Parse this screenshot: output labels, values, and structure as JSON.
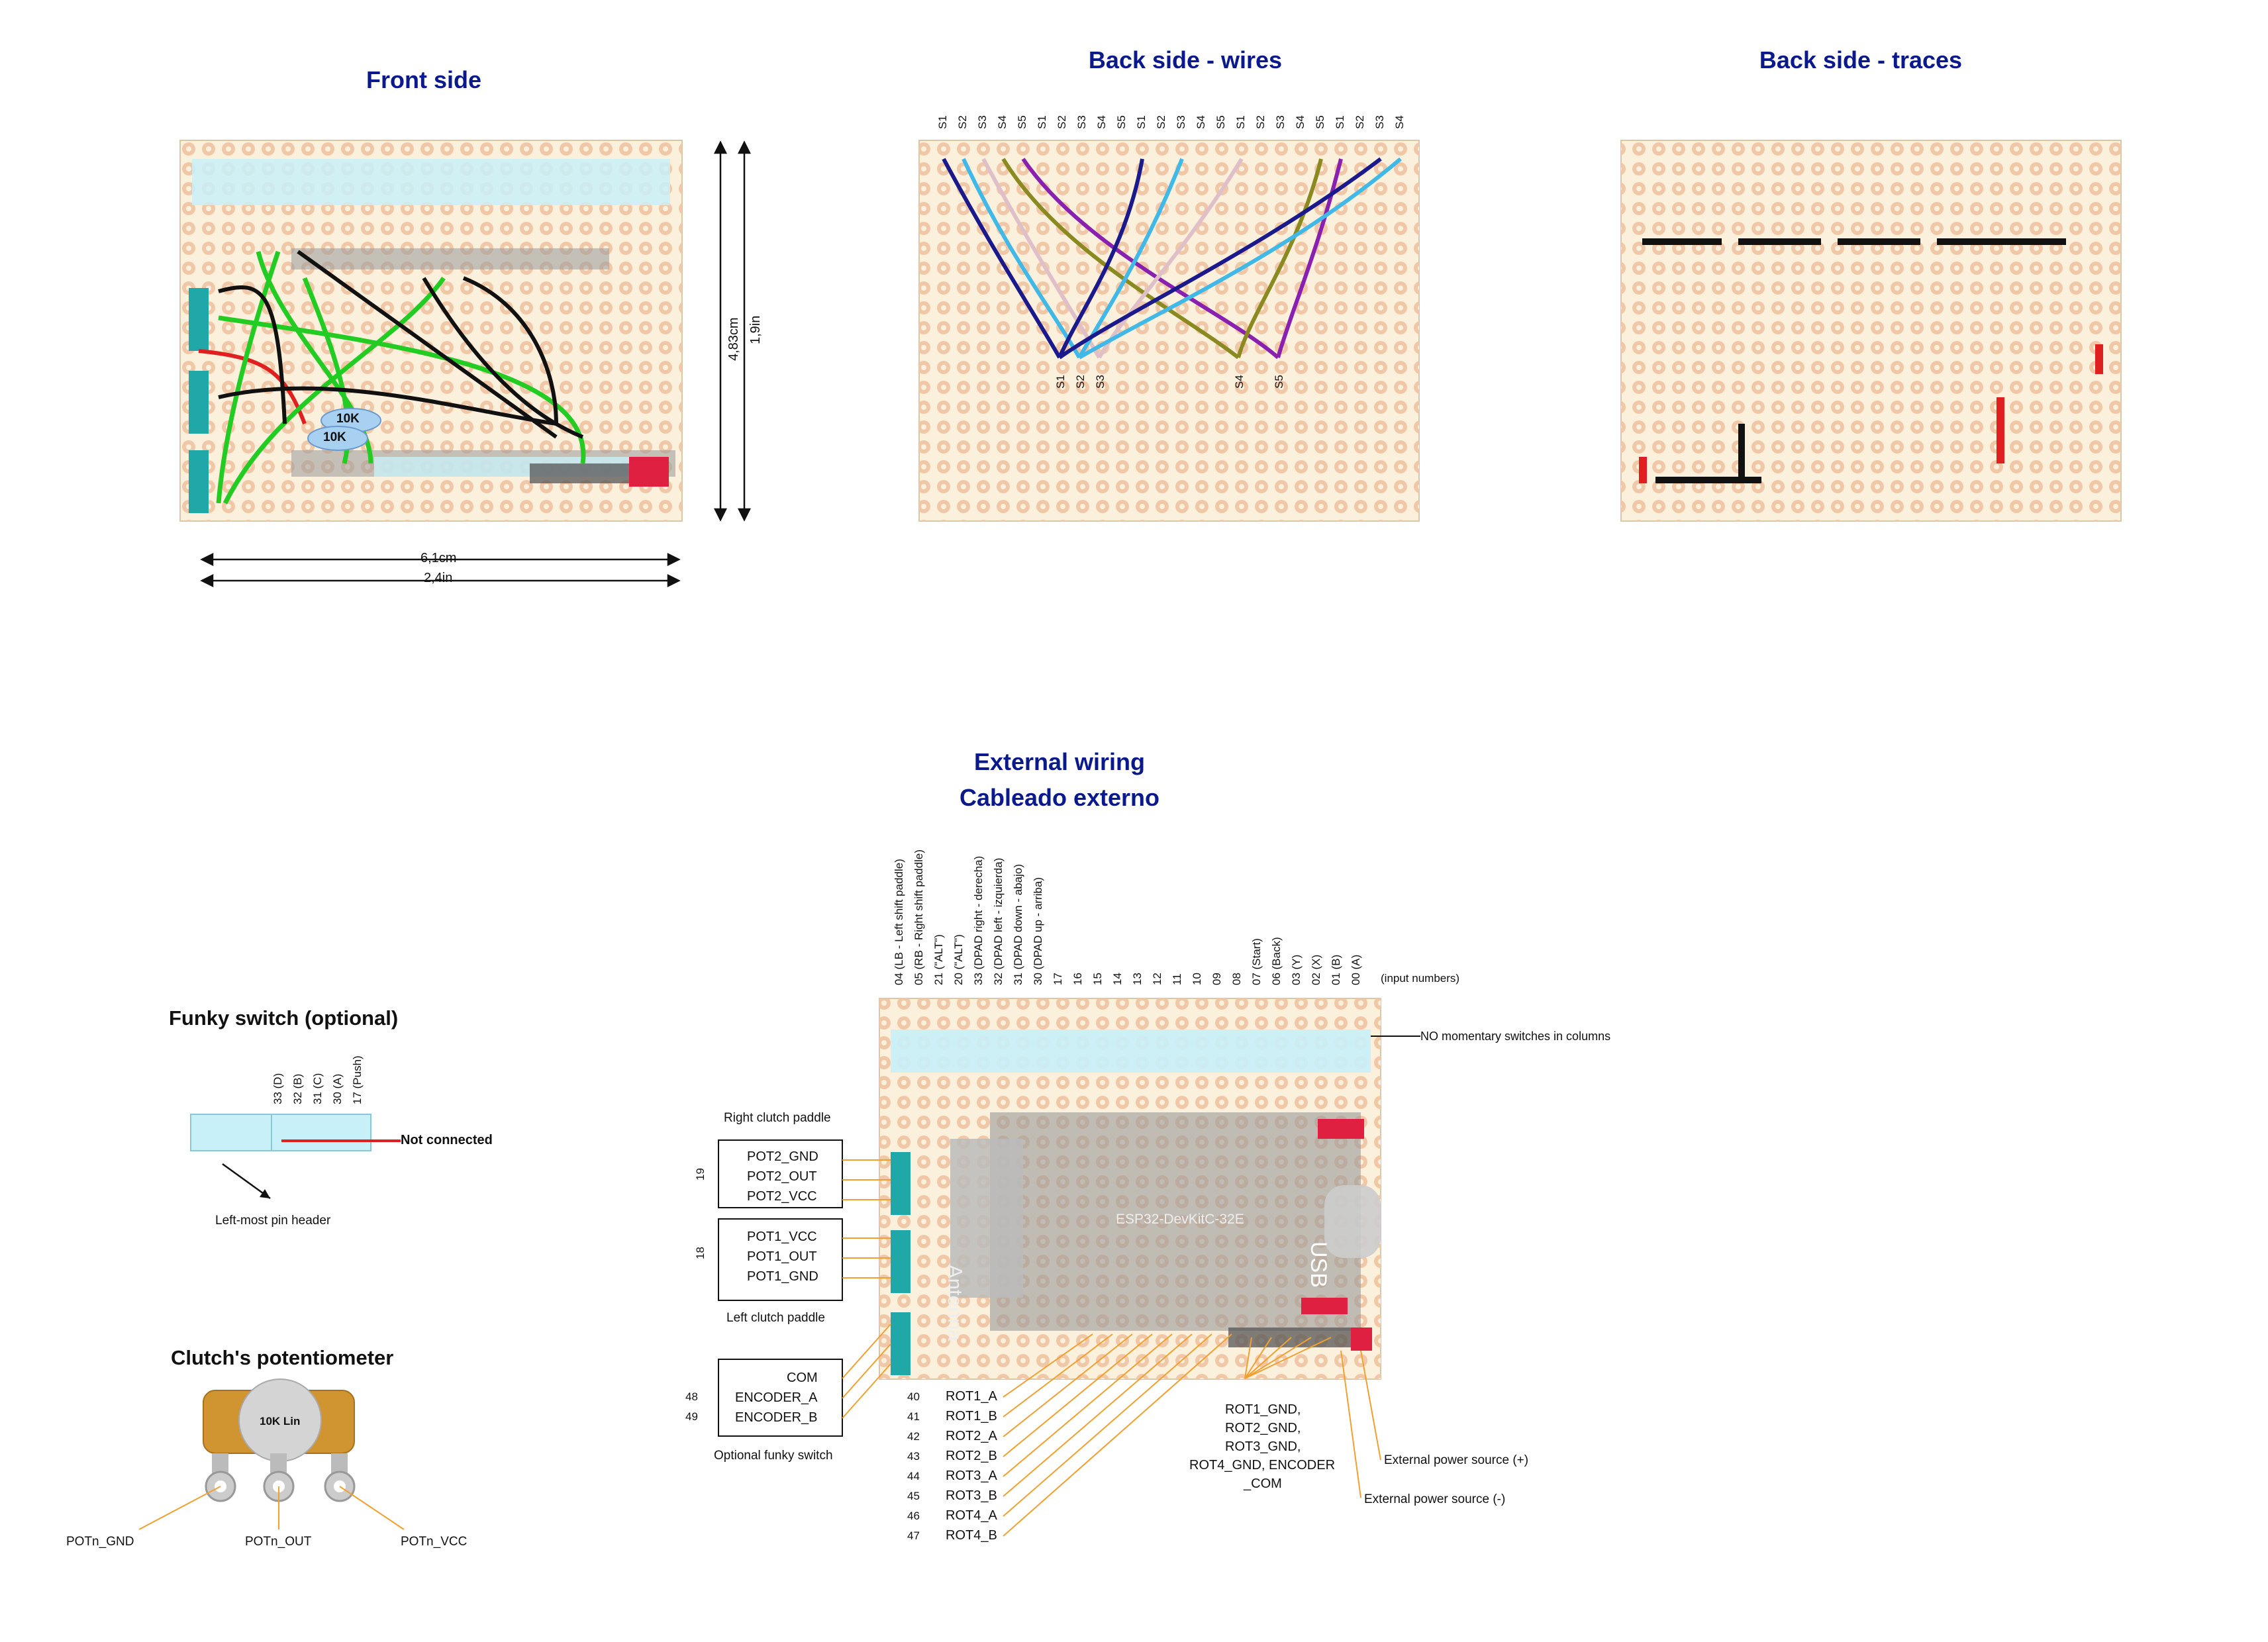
{
  "titles": {
    "front": "Front side",
    "back_wires": "Back side - wires",
    "back_traces": "Back side - traces",
    "external_1": "External wiring",
    "external_2": "Cableado externo",
    "funky": "Funky switch (optional)",
    "clutch": "Clutch's potentiometer"
  },
  "dimensions": {
    "width_cm": "6,1cm",
    "width_in": "2,4in",
    "height_cm": "4,83cm",
    "height_in": "1,9in"
  },
  "front_resistors": [
    "10K",
    "10K"
  ],
  "wire_labels_top": [
    "S1",
    "S2",
    "S3",
    "S4",
    "S5",
    "S1",
    "S2",
    "S3",
    "S4",
    "S5",
    "S1",
    "S2",
    "S3",
    "S4",
    "S5",
    "S1",
    "S2",
    "S3",
    "S4",
    "S5",
    "S1",
    "S2",
    "S3",
    "S4"
  ],
  "wire_labels_bottom": [
    "S1",
    "S2",
    "S3",
    "S4",
    "S5"
  ],
  "input_numbers": [
    "04 (LB - Left shift paddle)",
    "05 (RB - Right shift paddle)",
    "21 (\"ALT\")",
    "20 (\"ALT\")",
    "33 (DPAD right - derecha)",
    "32 (DPAD left - izquierda)",
    "31 (DPAD down - abajo)",
    "30 (DPAD up - arriba)",
    "17",
    "16",
    "15",
    "14",
    "13",
    "12",
    "11",
    "10",
    "09",
    "08",
    "07 (Start)",
    "06 (Back)",
    "03 (Y)",
    "02 (X)",
    "01 (B)",
    "00 (A)"
  ],
  "input_numbers_caption": "(input numbers)",
  "no_switches_label": "NO momentary switches in columns",
  "esp32": {
    "name": "ESP32-DevKitC-32E",
    "antenna": "Antenna",
    "usb": "USB"
  },
  "right_clutch": {
    "caption": "Right clutch paddle",
    "number": "19",
    "lines": [
      "POT2_GND",
      "POT2_OUT",
      "POT2_VCC"
    ]
  },
  "left_clutch": {
    "caption": "Left clutch paddle",
    "number": "18",
    "lines": [
      "POT1_VCC",
      "POT1_OUT",
      "POT1_GND"
    ]
  },
  "funky_box": {
    "caption": "Optional funky switch",
    "lines": [
      "COM",
      "ENCODER_A",
      "ENCODER_B"
    ],
    "numbers": [
      "48",
      "49"
    ]
  },
  "rotary": [
    {
      "num": "40",
      "name": "ROT1_A"
    },
    {
      "num": "41",
      "name": "ROT1_B"
    },
    {
      "num": "42",
      "name": "ROT2_A"
    },
    {
      "num": "43",
      "name": "ROT2_B"
    },
    {
      "num": "44",
      "name": "ROT3_A"
    },
    {
      "num": "45",
      "name": "ROT3_B"
    },
    {
      "num": "46",
      "name": "ROT4_A"
    },
    {
      "num": "47",
      "name": "ROT4_B"
    }
  ],
  "gnd_group": [
    "ROT1_GND,",
    "ROT2_GND,",
    "ROT3_GND,",
    "ROT4_GND, ENCODER",
    "_COM"
  ],
  "power": {
    "plus": "External power source (+)",
    "minus": "External power source (-)"
  },
  "funky_pins": [
    "33 (D)",
    "32 (B)",
    "31 (C)",
    "30 (A)",
    "17 (Push)"
  ],
  "funky_not_connected": "Not connected",
  "funky_leftmost": "Left-most pin header",
  "pot": {
    "value": "10K Lin",
    "gnd": "POTn_GND",
    "out": "POTn_OUT",
    "vcc": "POTn_VCC"
  },
  "colors": {
    "title": "#0a1a8c",
    "board": "#fbf0dc",
    "hole": "#f0c8a8",
    "header": "#c8f0f8",
    "wire_green": "#22cc22",
    "wire_black": "#111111",
    "trace": "#111111",
    "red": "#e02020",
    "orange_lead": "#f0a030"
  }
}
